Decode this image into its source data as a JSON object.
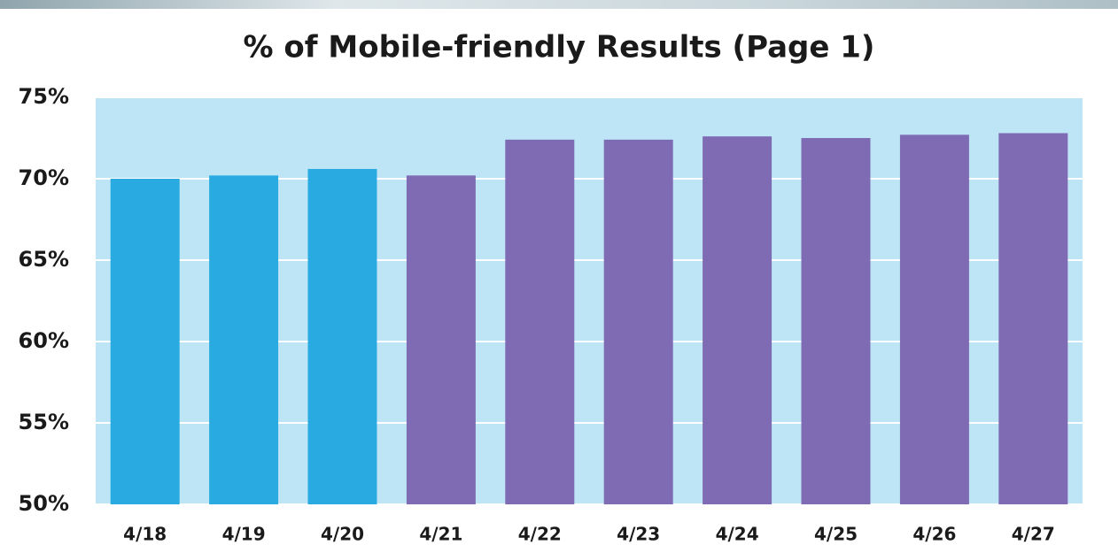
{
  "chart_data": {
    "type": "bar",
    "title": "% of Mobile-friendly Results (Page 1)",
    "categories": [
      "4/18",
      "4/19",
      "4/20",
      "4/21",
      "4/22",
      "4/23",
      "4/24",
      "4/25",
      "4/26",
      "4/27"
    ],
    "values": [
      70.0,
      70.2,
      70.6,
      70.2,
      72.4,
      72.4,
      72.6,
      72.5,
      72.7,
      72.8
    ],
    "colors": [
      "#29abe2",
      "#29abe2",
      "#29abe2",
      "#7e6bb3",
      "#7e6bb3",
      "#7e6bb3",
      "#7e6bb3",
      "#7e6bb3",
      "#7e6bb3",
      "#7e6bb3"
    ],
    "ylim": [
      50,
      75
    ],
    "yticks": [
      {
        "value": 50,
        "label": "50%"
      },
      {
        "value": 55,
        "label": "55%"
      },
      {
        "value": 60,
        "label": "60%"
      },
      {
        "value": 65,
        "label": "65%"
      },
      {
        "value": 70,
        "label": "70%"
      },
      {
        "value": 75,
        "label": "75%"
      }
    ],
    "grid": true
  }
}
